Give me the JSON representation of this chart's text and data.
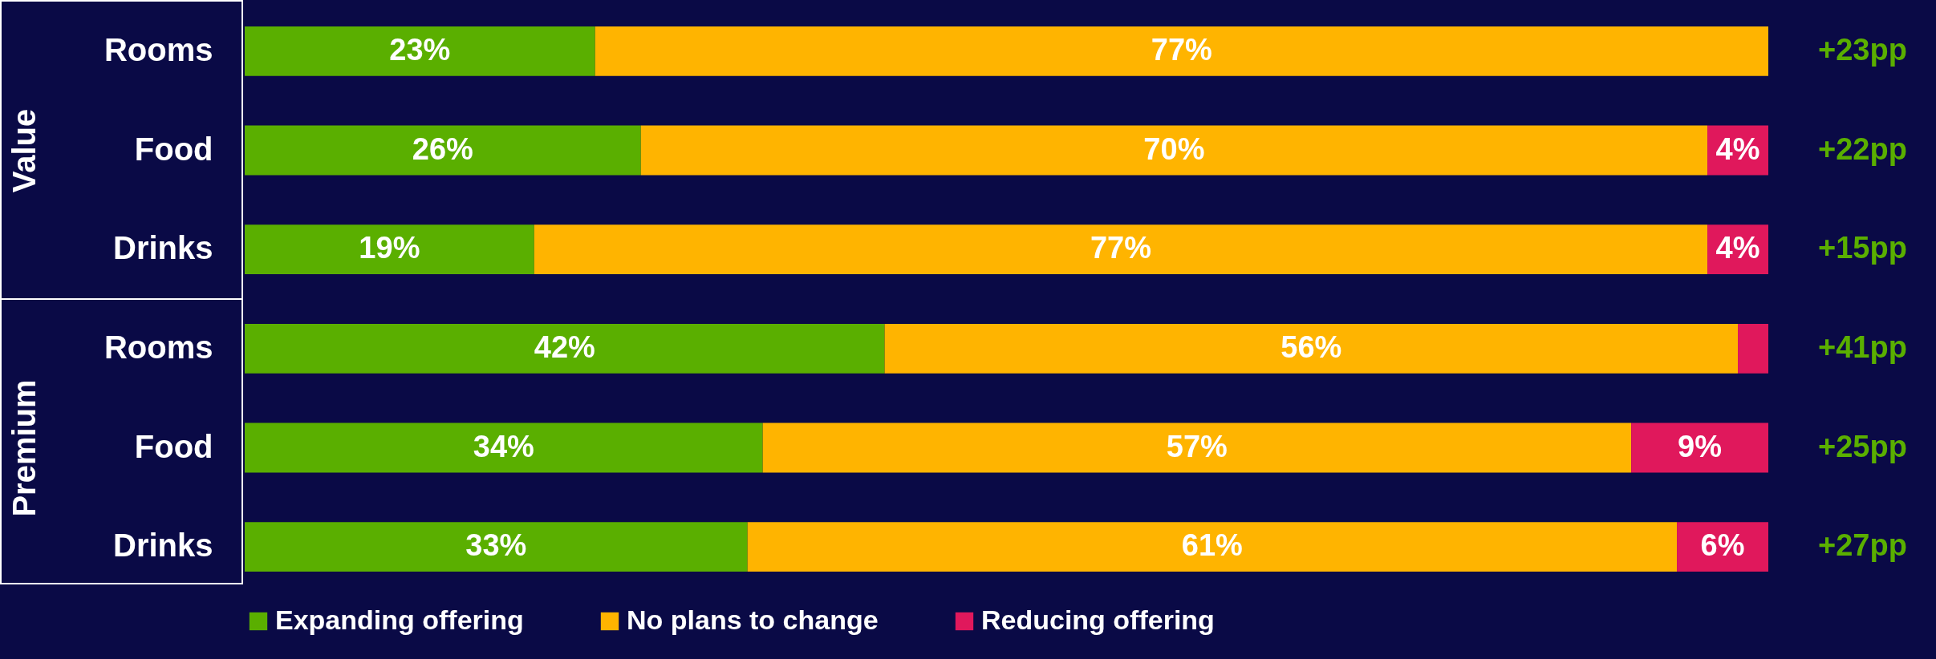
{
  "chart_data": {
    "type": "bar",
    "orientation": "horizontal",
    "stacked": true,
    "categories": [
      "Rooms",
      "Food",
      "Drinks",
      "Rooms",
      "Food",
      "Drinks"
    ],
    "series": [
      {
        "name": "Expanding offering",
        "color": "#5aaf00",
        "values": [
          23,
          26,
          19,
          42,
          34,
          33
        ],
        "value_labels": [
          "23%",
          "26%",
          "19%",
          "42%",
          "34%",
          "33%"
        ]
      },
      {
        "name": "No plans to change",
        "color": "#ffb400",
        "values": [
          77,
          70,
          77,
          56,
          57,
          61
        ],
        "value_labels": [
          "77%",
          "70%",
          "77%",
          "56%",
          "57%",
          "61%"
        ]
      },
      {
        "name": "Reducing offering",
        "color": "#e0185c",
        "values": [
          null,
          4,
          4,
          2,
          9,
          6
        ],
        "value_labels": [
          null,
          "4%",
          "4%",
          null,
          "9%",
          "6%"
        ]
      }
    ],
    "xlim": [
      0,
      100
    ],
    "tick_labels": "y",
    "legend": "bottom",
    "annotations": [
      "Value",
      "Premium",
      "+23pp",
      "+22pp",
      "+15pp",
      "+41pp",
      "+25pp",
      "+27pp"
    ]
  }
}
